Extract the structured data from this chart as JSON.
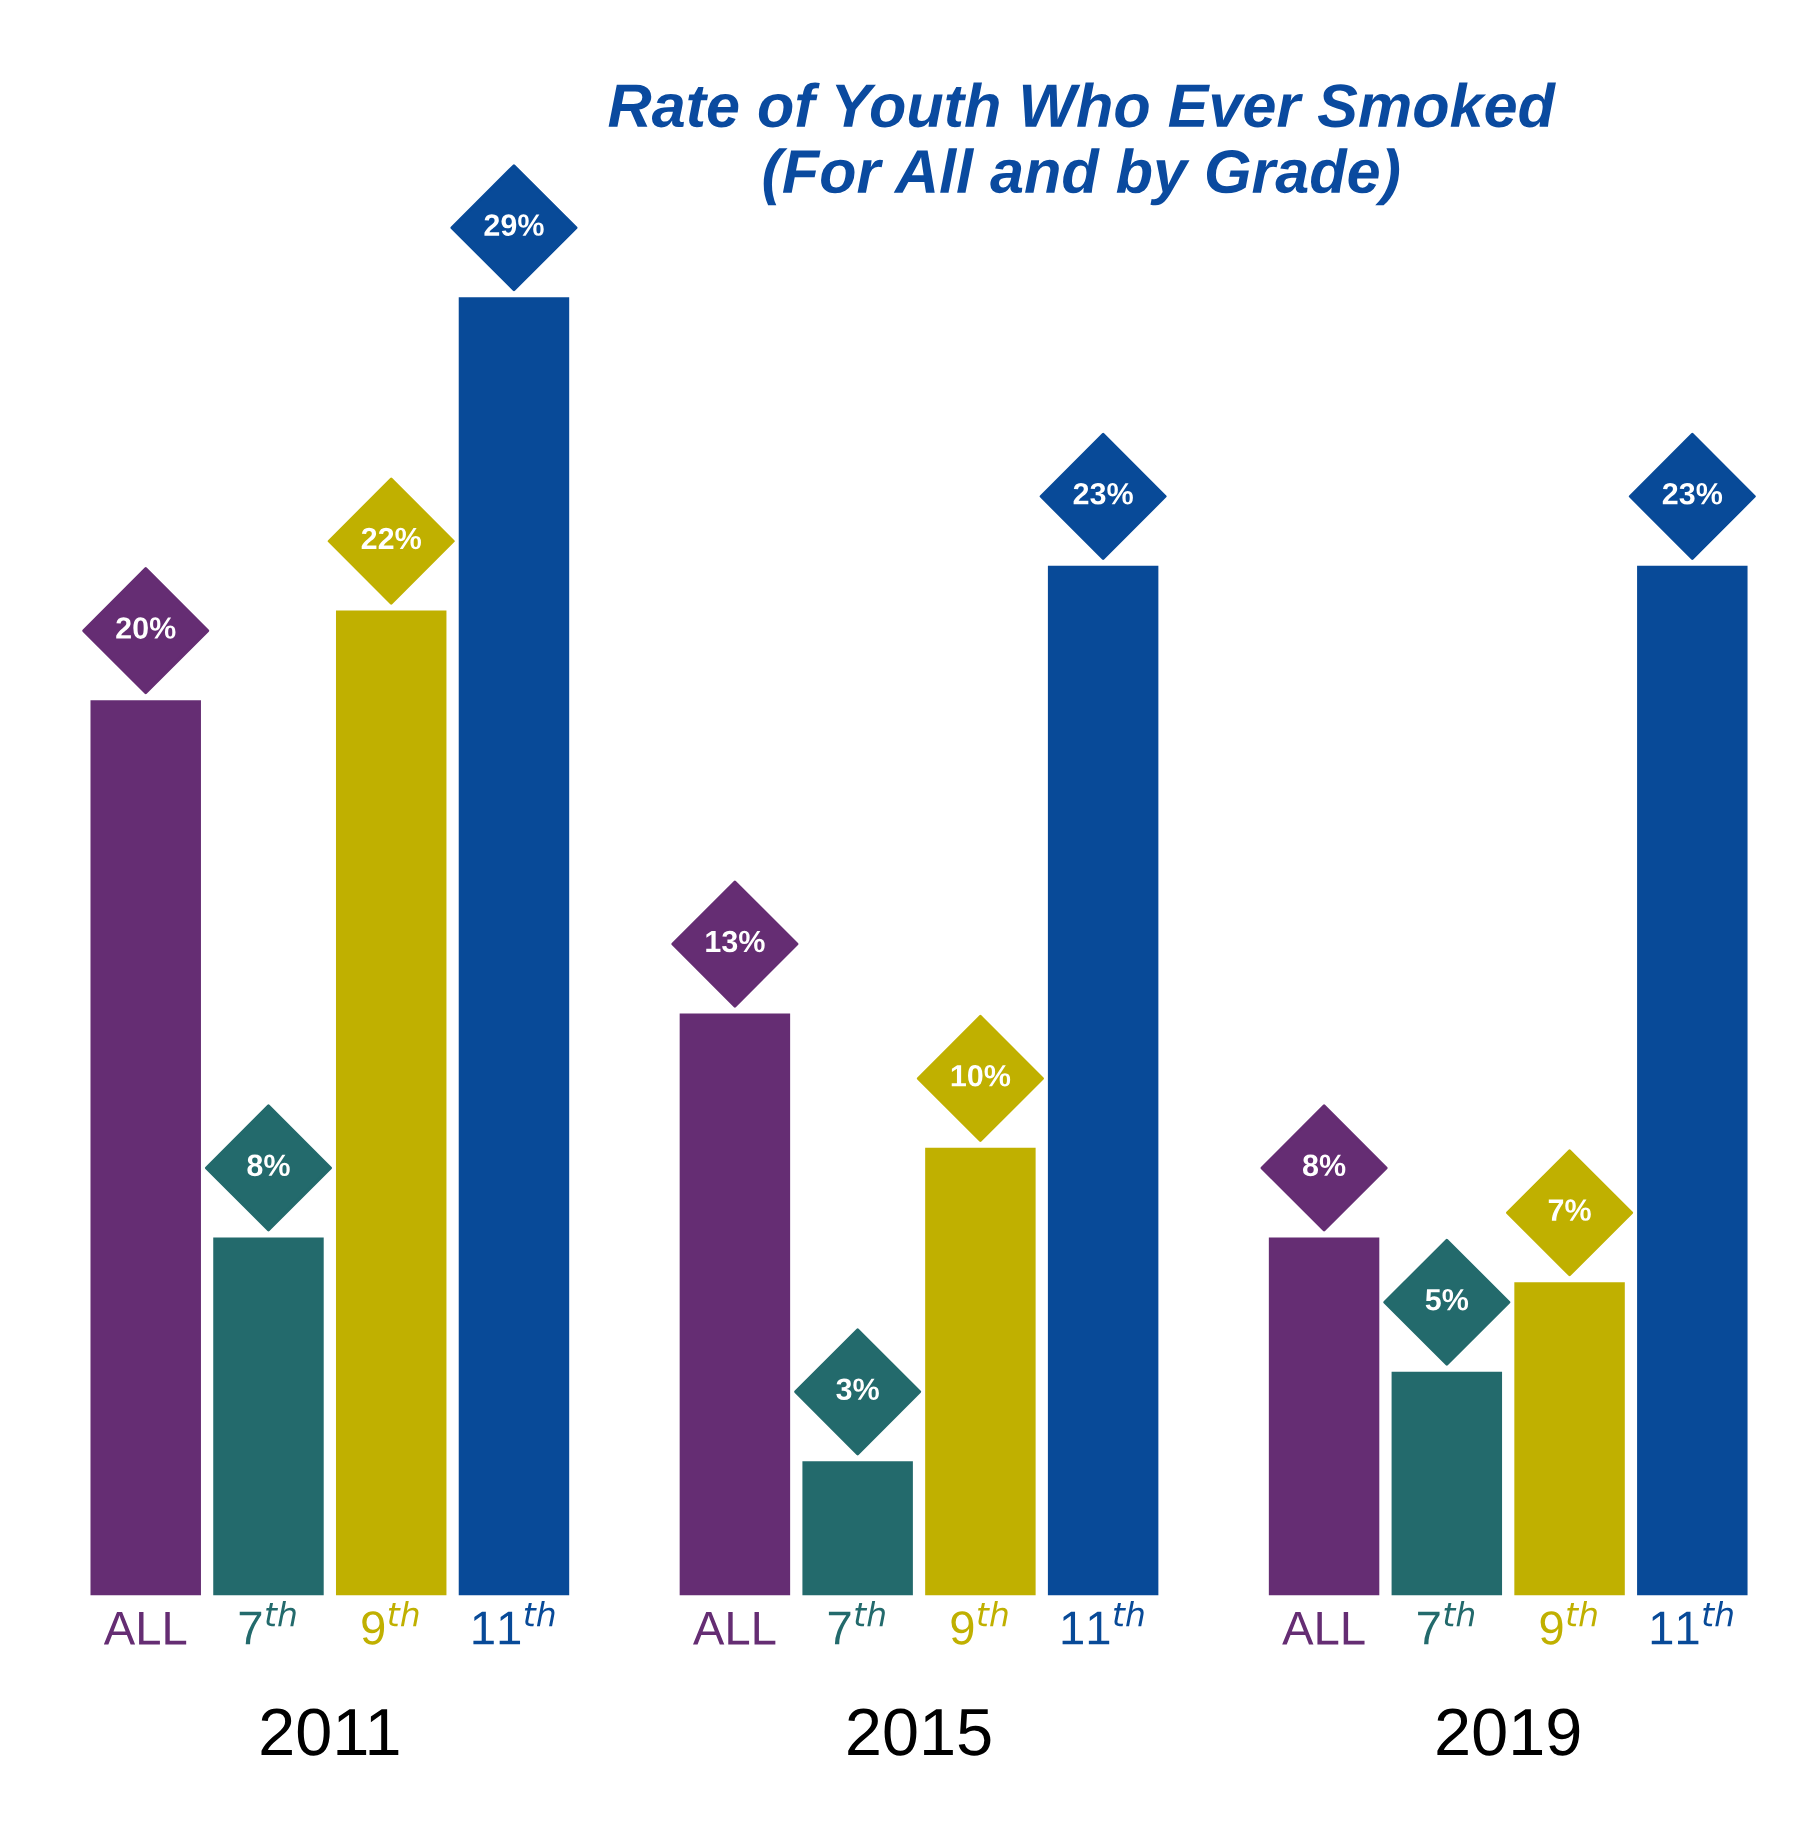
{
  "chart_data": {
    "type": "bar",
    "title": "Rate of Youth Who Ever Smoked\n(For All and by Grade)",
    "categories": [
      "2011",
      "2015",
      "2019"
    ],
    "series": [
      {
        "name": "ALL",
        "color": "#652d73",
        "values": [
          20,
          13,
          8
        ],
        "value_labels": [
          "20%",
          "13%",
          "8%"
        ]
      },
      {
        "name": "7$^{th}$",
        "color": "#236a6c",
        "values": [
          8,
          3,
          5
        ],
        "value_labels": [
          "8%",
          "3%",
          "5%"
        ]
      },
      {
        "name": "9$^{th}$",
        "color": "#c0b000",
        "values": [
          22,
          10,
          7
        ],
        "value_labels": [
          "22%",
          "10%",
          "7%"
        ]
      },
      {
        "name": "11$^{th}$",
        "color": "#084a98",
        "values": [
          29,
          23,
          23
        ],
        "value_labels": [
          "29%",
          "23%",
          "23%"
        ]
      }
    ],
    "legend": false
  }
}
